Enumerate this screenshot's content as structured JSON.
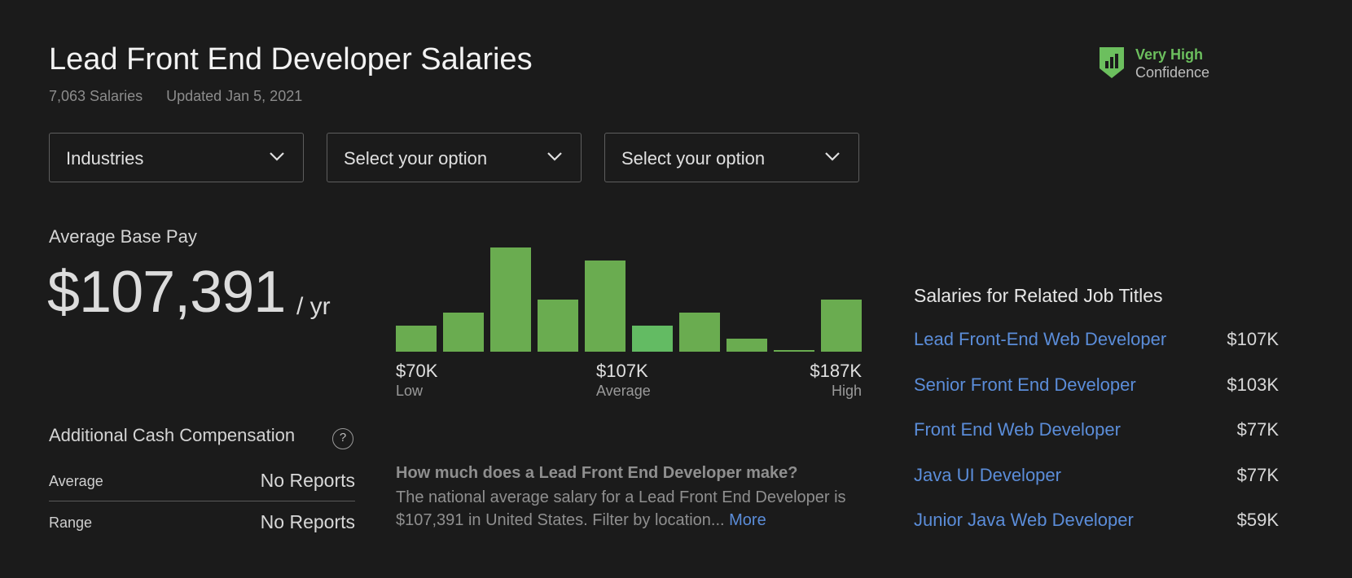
{
  "header": {
    "title": "Lead Front End Developer Salaries",
    "salary_count": "7,063 Salaries",
    "updated": "Updated Jan 5, 2021"
  },
  "confidence": {
    "level": "Very High",
    "label": "Confidence",
    "icon": "bar-chart-shield-icon",
    "color": "#6cbf5e"
  },
  "filters": [
    {
      "label": "Industries",
      "icon": "chevron-down-icon"
    },
    {
      "label": "Select your option",
      "icon": "chevron-down-icon"
    },
    {
      "label": "Select your option",
      "icon": "chevron-down-icon"
    }
  ],
  "base_pay": {
    "label": "Average Base Pay",
    "value": "$107,391",
    "unit": "/ yr"
  },
  "histogram": {
    "low_value": "$70K",
    "low_label": "Low",
    "avg_value": "$107K",
    "avg_label": "Average",
    "high_value": "$187K",
    "high_label": "High",
    "bar_color": "#6aac50",
    "highlight_color": "#63bb63"
  },
  "chart_data": {
    "type": "bar",
    "values": [
      2,
      3,
      8,
      4,
      7,
      2,
      3,
      1,
      0.1,
      4
    ],
    "highlight_index": 5
  },
  "additional_cash": {
    "title": "Additional Cash Compensation",
    "help_icon": "question-circle-icon",
    "help_glyph": "?",
    "rows": [
      {
        "key": "Average",
        "value": "No Reports"
      },
      {
        "key": "Range",
        "value": "No Reports"
      }
    ]
  },
  "faq": {
    "question": "How much does a Lead Front End Developer make?",
    "answer": "The national average salary for a Lead Front End Developer is $107,391 in United States. Filter by location...",
    "more": "More"
  },
  "related": {
    "title": "Salaries for Related Job Titles",
    "items": [
      {
        "job": "Lead Front-End Web Developer",
        "pay": "$107K"
      },
      {
        "job": "Senior Front End Developer",
        "pay": "$103K"
      },
      {
        "job": "Front End Web Developer",
        "pay": "$77K"
      },
      {
        "job": "Java UI Developer",
        "pay": "$77K"
      },
      {
        "job": "Junior Java Web Developer",
        "pay": "$59K"
      }
    ],
    "link_color": "#5b8dd9"
  }
}
